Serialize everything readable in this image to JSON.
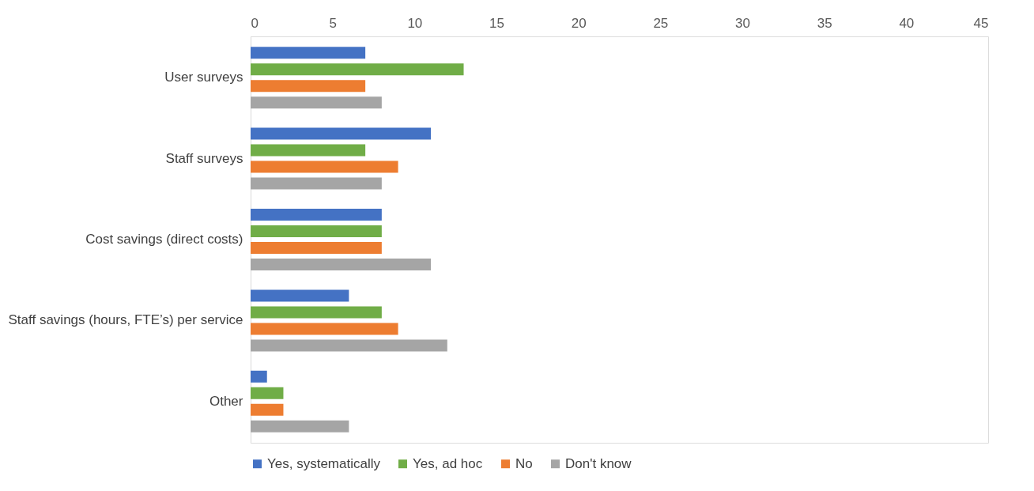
{
  "chart_data": {
    "type": "bar",
    "orientation": "horizontal",
    "categories": [
      "User surveys",
      "Staff surveys",
      "Cost savings (direct costs)",
      "Staff savings (hours, FTE’s) per service",
      "Other"
    ],
    "series": [
      {
        "name": "Yes, systematically",
        "color": "#4472c4",
        "values": [
          7,
          11,
          8,
          6,
          1
        ]
      },
      {
        "name": "Yes, ad hoc",
        "color": "#70ad47",
        "values": [
          13,
          7,
          8,
          8,
          2
        ]
      },
      {
        "name": "No",
        "color": "#ed7d31",
        "values": [
          7,
          9,
          8,
          9,
          2
        ]
      },
      {
        "name": "Don't know",
        "color": "#a5a5a5",
        "values": [
          8,
          8,
          11,
          12,
          6
        ]
      }
    ],
    "xlim": [
      0,
      45
    ],
    "xticks": [
      0,
      5,
      10,
      15,
      20,
      25,
      30,
      35,
      40,
      45
    ],
    "grid": false,
    "legend": "bottom"
  }
}
